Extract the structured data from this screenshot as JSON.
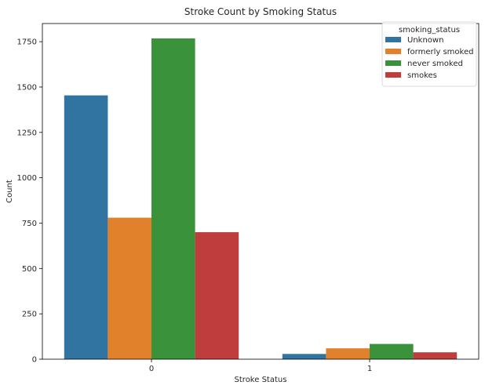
{
  "chart_data": {
    "type": "bar",
    "title": "Stroke Count by Smoking Status",
    "xlabel": "Stroke Status",
    "ylabel": "Count",
    "categories": [
      "0",
      "1"
    ],
    "series": [
      {
        "name": "Unknown",
        "values": [
          1454,
          29
        ]
      },
      {
        "name": "formerly smoked",
        "values": [
          780,
          60
        ]
      },
      {
        "name": "never smoked",
        "values": [
          1768,
          84
        ]
      },
      {
        "name": "smokes",
        "values": [
          700,
          38
        ]
      }
    ],
    "colors": [
      "#3274a1",
      "#e1812c",
      "#3a923a",
      "#c03d3e"
    ],
    "ylim": [
      0,
      1850
    ],
    "yticks": [
      0,
      250,
      500,
      750,
      1000,
      1250,
      1500,
      1750
    ],
    "grid": false,
    "legend": {
      "title": "smoking_status",
      "placement": "top-right"
    }
  }
}
